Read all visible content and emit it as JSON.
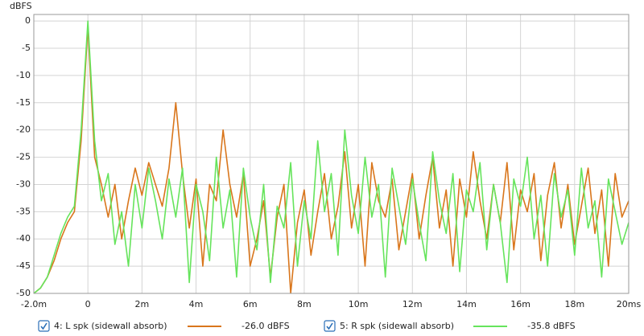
{
  "chart_data": {
    "type": "line",
    "y_label": "dBFS",
    "x": [
      -2,
      -1.75,
      -1.5,
      -1.25,
      -1,
      -0.75,
      -0.5,
      -0.25,
      0,
      0.25,
      0.5,
      0.75,
      1,
      1.25,
      1.5,
      1.75,
      2,
      2.25,
      2.5,
      2.75,
      3,
      3.25,
      3.5,
      3.75,
      4,
      4.25,
      4.5,
      4.75,
      5,
      5.25,
      5.5,
      5.75,
      6,
      6.25,
      6.5,
      6.75,
      7,
      7.25,
      7.5,
      7.75,
      8,
      8.25,
      8.5,
      8.75,
      9,
      9.25,
      9.5,
      9.75,
      10,
      10.25,
      10.5,
      10.75,
      11,
      11.25,
      11.5,
      11.75,
      12,
      12.25,
      12.5,
      12.75,
      13,
      13.25,
      13.5,
      13.75,
      14,
      14.25,
      14.5,
      14.75,
      15,
      15.25,
      15.5,
      15.75,
      16,
      16.25,
      16.5,
      16.75,
      17,
      17.25,
      17.5,
      17.75,
      18,
      18.25,
      18.5,
      18.75,
      19,
      19.25,
      19.5,
      19.75,
      20
    ],
    "series": [
      {
        "name": "4: L spk (sidewall absorb)",
        "readout": "-26.0 dBFS",
        "color": "#d9761c",
        "values": [
          -50,
          -49,
          -47,
          -44,
          -40,
          -37,
          -35,
          -22,
          -1,
          -25,
          -30,
          -36,
          -30,
          -40,
          -33,
          -27,
          -32,
          -26,
          -30,
          -34,
          -27,
          -15,
          -28,
          -38,
          -29,
          -45,
          -30,
          -33,
          -20,
          -30,
          -36,
          -28,
          -45,
          -40,
          -33,
          -47,
          -36,
          -30,
          -50,
          -37,
          -31,
          -43,
          -35,
          -28,
          -40,
          -34,
          -24,
          -38,
          -30,
          -45,
          -26,
          -33,
          -36,
          -29,
          -42,
          -35,
          -28,
          -40,
          -32,
          -25,
          -38,
          -31,
          -45,
          -29,
          -36,
          -24,
          -33,
          -40,
          -30,
          -37,
          -26,
          -42,
          -31,
          -35,
          -28,
          -44,
          -32,
          -26,
          -38,
          -30,
          -41,
          -34,
          -27,
          -39,
          -31,
          -45,
          -28,
          -36,
          -33
        ]
      },
      {
        "name": "5: R spk (sidewall absorb)",
        "readout": "-35.8 dBFS",
        "color": "#66e45c",
        "values": [
          -50,
          -49,
          -47,
          -43,
          -39,
          -36,
          -34,
          -20,
          0,
          -22,
          -33,
          -28,
          -41,
          -35,
          -45,
          -30,
          -38,
          -27,
          -33,
          -40,
          -29,
          -36,
          -27,
          -48,
          -30,
          -35,
          -44,
          -25,
          -38,
          -31,
          -47,
          -27,
          -36,
          -42,
          -30,
          -48,
          -34,
          -38,
          -26,
          -45,
          -33,
          -40,
          -22,
          -35,
          -28,
          -43,
          -20,
          -32,
          -39,
          -25,
          -36,
          -30,
          -47,
          -27,
          -34,
          -41,
          -29,
          -37,
          -44,
          -24,
          -33,
          -39,
          -28,
          -46,
          -31,
          -35,
          -26,
          -42,
          -30,
          -37,
          -48,
          -29,
          -34,
          -25,
          -40,
          -32,
          -45,
          -28,
          -36,
          -31,
          -43,
          -27,
          -38,
          -33,
          -47,
          -29,
          -35,
          -41,
          -37
        ]
      }
    ],
    "xlim": [
      -2,
      20
    ],
    "xticks": [
      {
        "value": -2,
        "label": "-2.0m"
      },
      0,
      {
        "value": 2,
        "label": "2m"
      },
      {
        "value": 4,
        "label": "4m"
      },
      {
        "value": 6,
        "label": "6m"
      },
      {
        "value": 8,
        "label": "8m"
      },
      {
        "value": 10,
        "label": "10m"
      },
      {
        "value": 12,
        "label": "12m"
      },
      {
        "value": 14,
        "label": "14m"
      },
      {
        "value": 16,
        "label": "16m"
      },
      {
        "value": 18,
        "label": "18m"
      },
      {
        "value": 20,
        "label": "20ms"
      }
    ],
    "ylim": [
      -50,
      1.2
    ],
    "yticks": [
      0,
      -5,
      -10,
      -15,
      -20,
      -25,
      -30,
      -35,
      -40,
      -45,
      -50
    ],
    "grid": true
  }
}
